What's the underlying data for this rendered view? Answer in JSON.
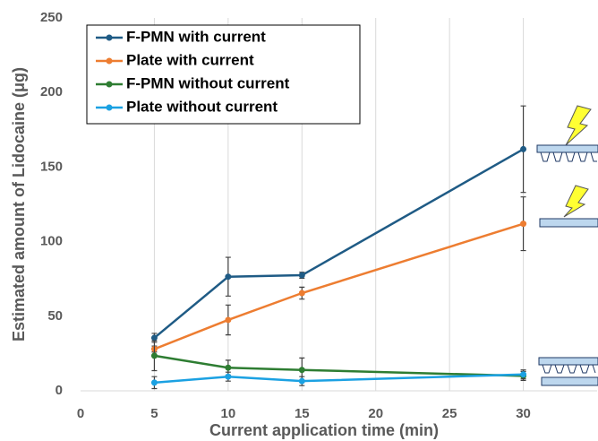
{
  "chart_data": {
    "type": "line",
    "x_label": "Current application time (min)",
    "y_label": "Estimated amount of Lidocaine (μg)",
    "x": [
      5,
      10,
      15,
      30
    ],
    "series": [
      {
        "name": "F-PMN with current",
        "color": "#1f5b85",
        "values": [
          35.5,
          76.5,
          77.5,
          162
        ],
        "errors": [
          3,
          13,
          2,
          29
        ]
      },
      {
        "name": "Plate with current",
        "color": "#ed7d31",
        "values": [
          28,
          47.5,
          65.5,
          112
        ],
        "errors": [
          2,
          10,
          4,
          18
        ]
      },
      {
        "name": "F-PMN without current",
        "color": "#2e7d32",
        "values": [
          23.5,
          15.5,
          14,
          10
        ],
        "errors": [
          10,
          5,
          8,
          3
        ]
      },
      {
        "name": "Plate without current",
        "color": "#1ba1e2",
        "values": [
          5.5,
          9.5,
          6.5,
          11
        ],
        "errors": [
          4,
          3,
          3,
          3
        ]
      }
    ],
    "xlim": [
      0,
      35
    ],
    "xticks": [
      0,
      5,
      10,
      15,
      20,
      25,
      30
    ],
    "ylim": [
      0,
      250
    ],
    "yticks": [
      0,
      50,
      100,
      150,
      200,
      250
    ],
    "grid": true,
    "legend": "top-left"
  }
}
